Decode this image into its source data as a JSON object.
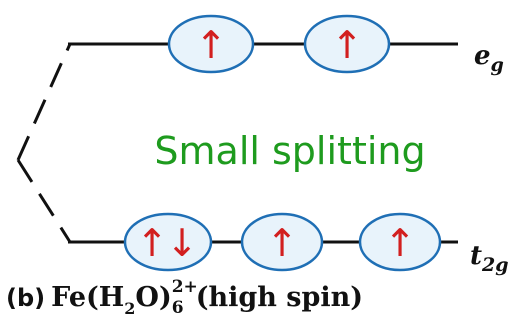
{
  "diagram": {
    "levels": {
      "upper": {
        "label_main": "e",
        "label_sub": "g",
        "electrons": [
          [
            "up"
          ],
          [
            "up"
          ]
        ]
      },
      "lower": {
        "label_main": "t",
        "label_sub": "2g",
        "electrons": [
          [
            "up",
            "down"
          ],
          [
            "up"
          ],
          [
            "up"
          ]
        ]
      }
    },
    "splitting_label": "Small splitting",
    "colors": {
      "line": "#111111",
      "orbital_fill": "#e8f3fb",
      "orbital_stroke": "#1f6fb5",
      "arrow": "#d21f1f",
      "splitting_label": "#1e9b1e"
    },
    "arrow_glyphs": {
      "up": "↑",
      "down": "↓"
    }
  },
  "caption": {
    "part": "(b)",
    "formula_pre": "Fe(H",
    "formula_sub": "2",
    "formula_mid": "O)",
    "formula_superscript": "2+",
    "formula_subscript": "6",
    "suffix": "(high spin)"
  }
}
